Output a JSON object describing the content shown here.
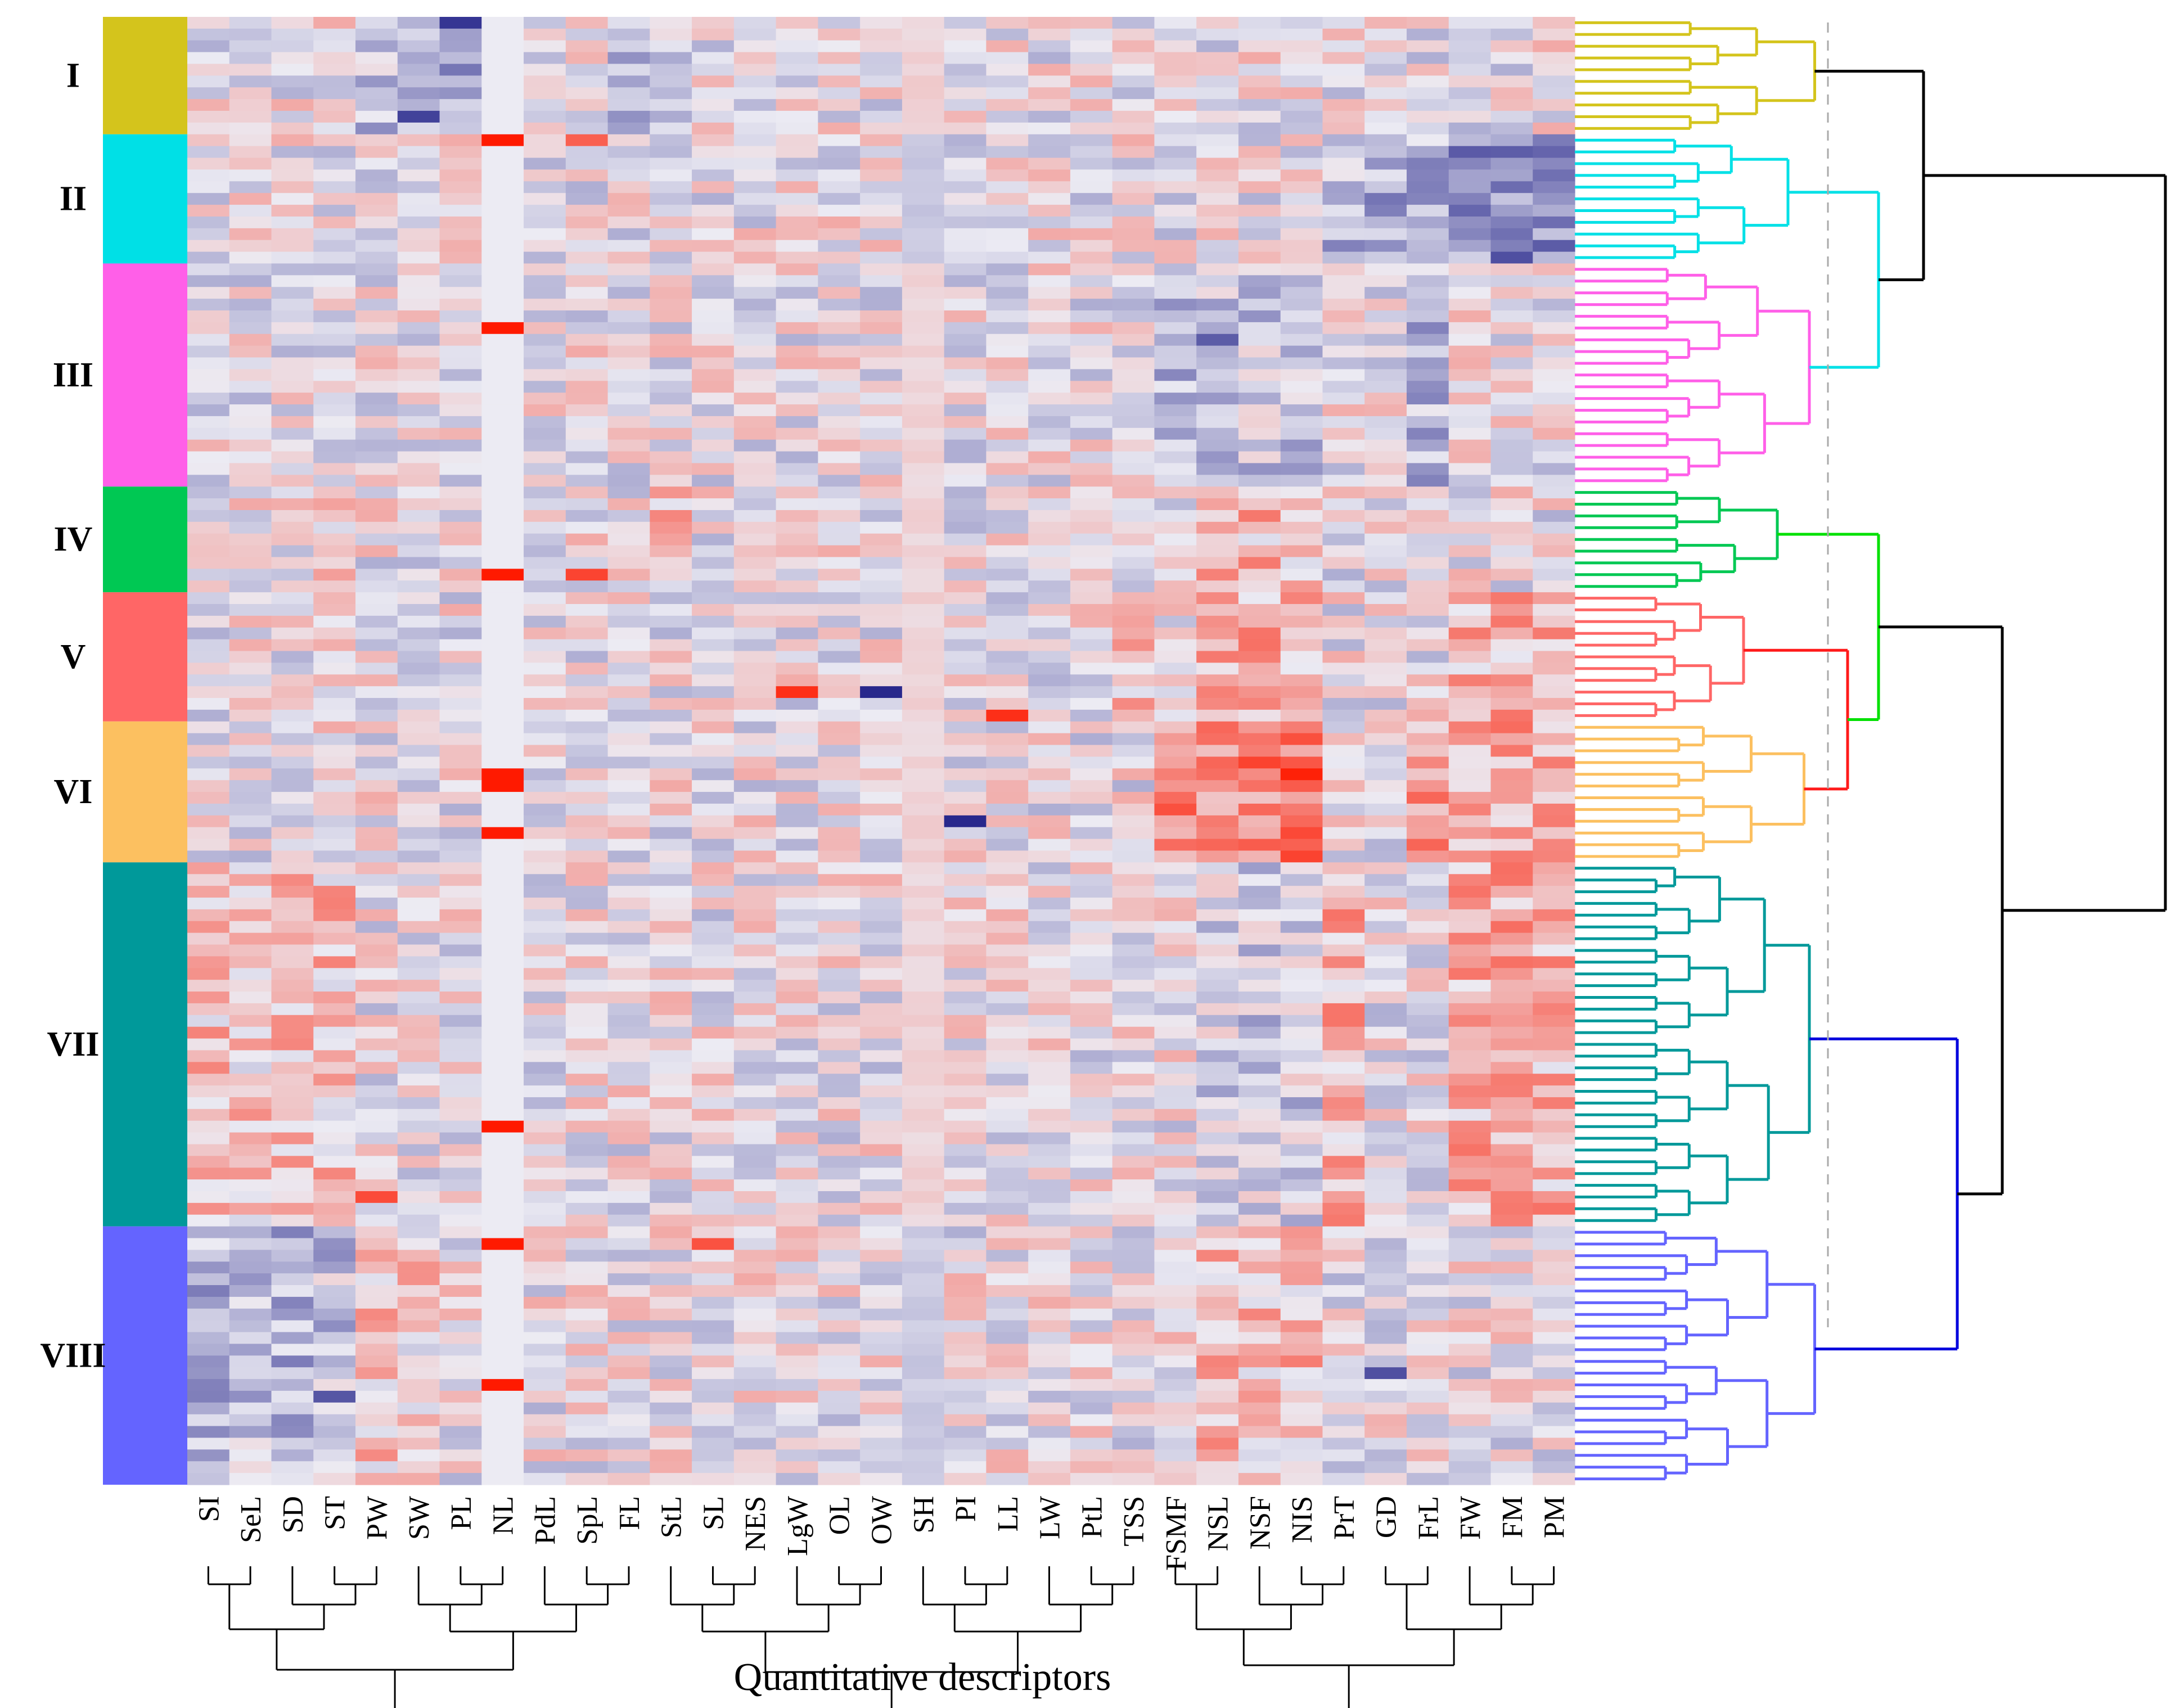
{
  "chart_data": {
    "type": "heatmap",
    "title": "",
    "xlabel": "Quantitative descriptors",
    "ylabel": "",
    "columns": [
      "SI",
      "SeL",
      "SD",
      "ST",
      "PW",
      "SW",
      "PL",
      "NL",
      "PdL",
      "SpL",
      "FL",
      "StL",
      "SL",
      "NES",
      "LgW",
      "OL",
      "OW",
      "SH",
      "PI",
      "LL",
      "LW",
      "PtL",
      "TSS",
      "FSMF",
      "NSL",
      "NSF",
      "NIS",
      "PrT",
      "GD",
      "FrL",
      "FW",
      "FM",
      "PM"
    ],
    "clusters": [
      {
        "label": "I",
        "rows": 10,
        "color": "#d4c41c"
      },
      {
        "label": "II",
        "rows": 11,
        "color": "#00e0e6"
      },
      {
        "label": "III",
        "rows": 19,
        "color": "#ff5fe8"
      },
      {
        "label": "IV",
        "rows": 9,
        "color": "#00c853"
      },
      {
        "label": "V",
        "rows": 11,
        "color": "#ff6666"
      },
      {
        "label": "VI",
        "rows": 12,
        "color": "#fcc060"
      },
      {
        "label": "VII",
        "rows": 31,
        "color": "#00999a"
      },
      {
        "label": "VIII",
        "rows": 22,
        "color": "#6464ff"
      }
    ],
    "color_scale": {
      "low": "#28288c",
      "mid": "#ecebf3",
      "high": "#ff1a00"
    },
    "value_range": [
      -3,
      3
    ],
    "notable_values": [
      {
        "row": 10,
        "column": "NL",
        "value": 3
      },
      {
        "row": 26,
        "column": "NL",
        "value": 3
      },
      {
        "row": 47,
        "column": "NL",
        "value": 3
      },
      {
        "row": 47,
        "column": "SpL",
        "value": 2.4
      },
      {
        "row": 10,
        "column": "SpL",
        "value": 2
      },
      {
        "row": 57,
        "column": "LgW",
        "value": 2.7
      },
      {
        "row": 57,
        "column": "OW",
        "value": -3
      },
      {
        "row": 59,
        "column": "LL",
        "value": 2.7
      },
      {
        "row": 64,
        "column": "NL",
        "value": 3
      },
      {
        "row": 65,
        "column": "NL",
        "value": 3
      },
      {
        "row": 64,
        "column": "NIS",
        "value": 2.9
      },
      {
        "row": 68,
        "column": "PI",
        "value": -3
      },
      {
        "row": 69,
        "column": "NL",
        "value": 3
      },
      {
        "row": 0,
        "column": "PL",
        "value": -2.8
      },
      {
        "row": 8,
        "column": "SW",
        "value": -2.6
      },
      {
        "row": 20,
        "column": "FM",
        "value": -2.4
      },
      {
        "row": 19,
        "column": "PM",
        "value": -2.2
      },
      {
        "row": 27,
        "column": "NSL",
        "value": -2.2
      },
      {
        "row": 94,
        "column": "NL",
        "value": 3
      },
      {
        "row": 100,
        "column": "PW",
        "value": 2.3
      },
      {
        "row": 104,
        "column": "NL",
        "value": 3
      },
      {
        "row": 104,
        "column": "SL",
        "value": 2.2
      },
      {
        "row": 116,
        "column": "NL",
        "value": 3
      },
      {
        "row": 115,
        "column": "GD",
        "value": -2.4
      },
      {
        "row": 117,
        "column": "ST",
        "value": -2.3
      }
    ]
  },
  "column_dendrogram_order": "SI SeL SD ST PW SW PL NL PdL SpL FL StL SL NES LgW OL OW SH PI LL LW PtL TSS FSMF NSL NSF NIS PrT GD FrL FW FM PM"
}
